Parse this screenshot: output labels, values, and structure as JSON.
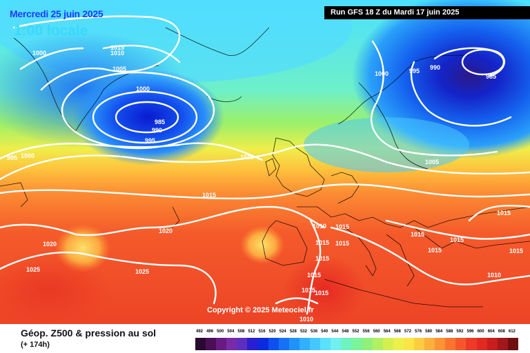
{
  "header": {
    "date": "Mercredi 25 juin 2025",
    "time": "1:00 locale",
    "run": "Run GFS 18 Z du Mardi 17 juin 2025"
  },
  "copyright": "Copyright © 2025 Meteociel.fr",
  "legend": {
    "title": "Géop. Z500 & pression au sol",
    "subtitle": "(+ 174h)",
    "ticks": [
      "492",
      "496",
      "500",
      "504",
      "508",
      "512",
      "516",
      "520",
      "524",
      "528",
      "532",
      "536",
      "540",
      "544",
      "548",
      "552",
      "556",
      "560",
      "564",
      "568",
      "572",
      "576",
      "580",
      "584",
      "588",
      "592",
      "596",
      "600",
      "604",
      "608",
      "612"
    ],
    "colors": [
      "#2a0a2e",
      "#4b0f55",
      "#6a1b83",
      "#7b2aa7",
      "#5d2fbf",
      "#2a1fd0",
      "#0a2be0",
      "#0d50f0",
      "#1572f5",
      "#1f93fa",
      "#31b0ff",
      "#45c8ff",
      "#5be0ff",
      "#70f0f0",
      "#6ef2c0",
      "#7af49a",
      "#90f07a",
      "#b2f062",
      "#d4f050",
      "#eef04a",
      "#fbe445",
      "#fdcc40",
      "#fdb03a",
      "#fc9334",
      "#fa7430",
      "#f5572b",
      "#ee3a26",
      "#e02a22",
      "#c81e1e",
      "#a3161a",
      "#6e1012"
    ]
  },
  "isobars": [
    {
      "label": "1015"
    },
    {
      "label": "1010"
    },
    {
      "label": "1005"
    },
    {
      "label": "1000"
    },
    {
      "label": "1000"
    },
    {
      "label": "985"
    },
    {
      "label": "990"
    },
    {
      "label": "995"
    },
    {
      "label": "995"
    },
    {
      "label": "1000"
    },
    {
      "label": "1010"
    },
    {
      "label": "1015"
    },
    {
      "label": "1020"
    },
    {
      "label": "1020"
    },
    {
      "label": "1025"
    },
    {
      "label": "1025"
    },
    {
      "label": "1000"
    },
    {
      "label": "995"
    },
    {
      "label": "990"
    },
    {
      "label": "985"
    },
    {
      "label": "1005"
    },
    {
      "label": "1010"
    },
    {
      "label": "1015"
    },
    {
      "label": "1015"
    },
    {
      "label": "1015"
    },
    {
      "label": "1015"
    },
    {
      "label": "1015"
    },
    {
      "label": "1015"
    },
    {
      "label": "1015"
    },
    {
      "label": "1015"
    },
    {
      "label": "1015"
    },
    {
      "label": "1015"
    },
    {
      "label": "1010"
    },
    {
      "label": "1015"
    },
    {
      "label": "1015"
    },
    {
      "label": "1010"
    }
  ]
}
